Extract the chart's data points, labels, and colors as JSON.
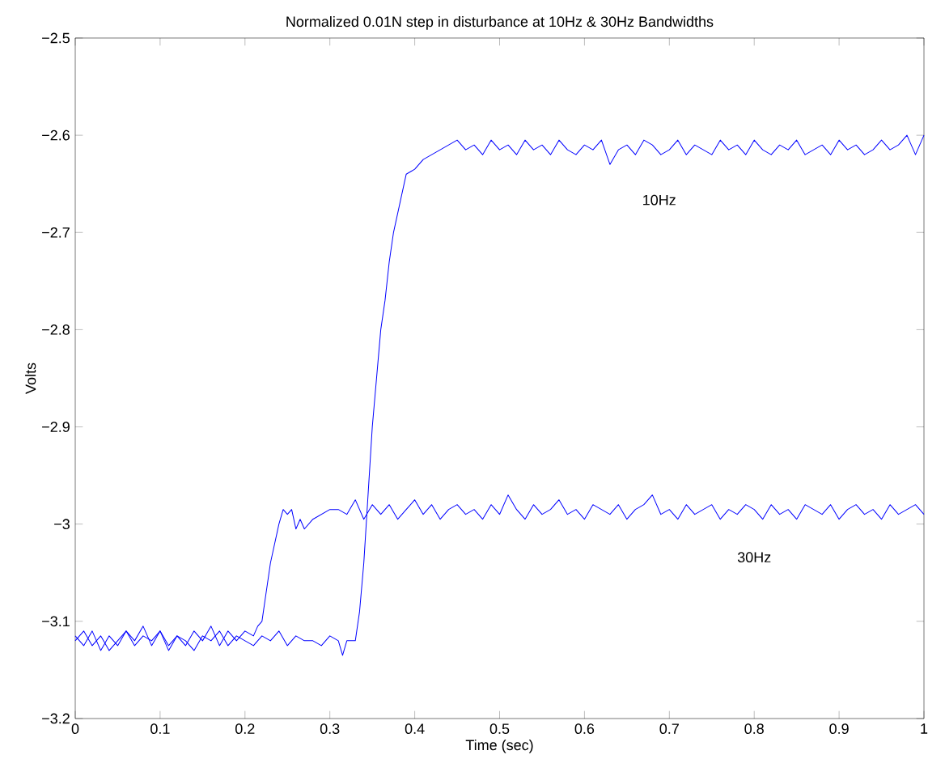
{
  "chart_data": {
    "type": "line",
    "title": "Normalized 0.01N step in disturbance at 10Hz & 30Hz Bandwidths",
    "xlabel": "Time (sec)",
    "ylabel": "Volts",
    "xlim": [
      0,
      1
    ],
    "ylim": [
      -3.2,
      -2.5
    ],
    "xticks": [
      0,
      0.1,
      0.2,
      0.3,
      0.4,
      0.5,
      0.6,
      0.7,
      0.8,
      0.9,
      1
    ],
    "yticks": [
      {
        "value": -3.2,
        "label": "−3.2"
      },
      {
        "value": -3.1,
        "label": "−3.1"
      },
      {
        "value": -3,
        "label": "−3"
      },
      {
        "value": -2.9,
        "label": "−2.9"
      },
      {
        "value": -2.8,
        "label": "−2.8"
      },
      {
        "value": -2.7,
        "label": "−2.7"
      },
      {
        "value": -2.6,
        "label": "−2.6"
      },
      {
        "value": -2.5,
        "label": "−2.5"
      }
    ],
    "grid": false,
    "marker": "none",
    "line_style": "solid",
    "annotations": [
      "10Hz",
      "30Hz"
    ],
    "series": [
      {
        "color": "#0000ff",
        "x": [
          0,
          0.01,
          0.02,
          0.03,
          0.04,
          0.05,
          0.06,
          0.07,
          0.08,
          0.09,
          0.1,
          0.11,
          0.12,
          0.13,
          0.14,
          0.15,
          0.16,
          0.17,
          0.18,
          0.19,
          0.2,
          0.21,
          0.22,
          0.23,
          0.24,
          0.25,
          0.26,
          0.27,
          0.28,
          0.29,
          0.3,
          0.31,
          0.315,
          0.32,
          0.33,
          0.335,
          0.34,
          0.345,
          0.35,
          0.355,
          0.36,
          0.365,
          0.37,
          0.375,
          0.38,
          0.385,
          0.39,
          0.4,
          0.41,
          0.42,
          0.43,
          0.44,
          0.45,
          0.46,
          0.47,
          0.48,
          0.49,
          0.5,
          0.51,
          0.52,
          0.53,
          0.54,
          0.55,
          0.56,
          0.57,
          0.58,
          0.59,
          0.6,
          0.61,
          0.62,
          0.63,
          0.64,
          0.65,
          0.66,
          0.67,
          0.68,
          0.69,
          0.7,
          0.71,
          0.72,
          0.73,
          0.74,
          0.75,
          0.76,
          0.77,
          0.78,
          0.79,
          0.8,
          0.81,
          0.82,
          0.83,
          0.84,
          0.85,
          0.86,
          0.87,
          0.88,
          0.89,
          0.9,
          0.91,
          0.92,
          0.93,
          0.94,
          0.95,
          0.96,
          0.97,
          0.98,
          0.99,
          1
        ],
        "values": [
          -3.12,
          -3.11,
          -3.125,
          -3.115,
          -3.13,
          -3.12,
          -3.11,
          -3.125,
          -3.115,
          -3.12,
          -3.11,
          -3.125,
          -3.115,
          -3.12,
          -3.13,
          -3.115,
          -3.12,
          -3.11,
          -3.125,
          -3.115,
          -3.12,
          -3.125,
          -3.115,
          -3.12,
          -3.11,
          -3.125,
          -3.115,
          -3.12,
          -3.12,
          -3.125,
          -3.115,
          -3.12,
          -3.135,
          -3.12,
          -3.12,
          -3.09,
          -3.04,
          -2.97,
          -2.9,
          -2.85,
          -2.8,
          -2.77,
          -2.73,
          -2.7,
          -2.68,
          -2.66,
          -2.64,
          -2.635,
          -2.625,
          -2.62,
          -2.615,
          -2.61,
          -2.605,
          -2.615,
          -2.61,
          -2.62,
          -2.605,
          -2.615,
          -2.61,
          -2.62,
          -2.605,
          -2.615,
          -2.61,
          -2.62,
          -2.605,
          -2.615,
          -2.62,
          -2.61,
          -2.615,
          -2.605,
          -2.63,
          -2.615,
          -2.61,
          -2.62,
          -2.605,
          -2.61,
          -2.62,
          -2.615,
          -2.605,
          -2.62,
          -2.61,
          -2.615,
          -2.62,
          -2.605,
          -2.615,
          -2.61,
          -2.62,
          -2.605,
          -2.615,
          -2.62,
          -2.61,
          -2.615,
          -2.605,
          -2.62,
          -2.615,
          -2.61,
          -2.62,
          -2.605,
          -2.615,
          -2.61,
          -2.62,
          -2.615,
          -2.605,
          -2.615,
          -2.61,
          -2.6,
          -2.62,
          -2.6
        ]
      },
      {
        "color": "#0000ff",
        "x": [
          0,
          0.01,
          0.02,
          0.03,
          0.04,
          0.05,
          0.06,
          0.07,
          0.08,
          0.09,
          0.1,
          0.11,
          0.12,
          0.13,
          0.14,
          0.15,
          0.16,
          0.17,
          0.18,
          0.19,
          0.2,
          0.21,
          0.215,
          0.22,
          0.225,
          0.23,
          0.235,
          0.24,
          0.245,
          0.25,
          0.255,
          0.26,
          0.265,
          0.27,
          0.28,
          0.29,
          0.3,
          0.31,
          0.32,
          0.33,
          0.34,
          0.35,
          0.36,
          0.37,
          0.38,
          0.39,
          0.4,
          0.41,
          0.42,
          0.43,
          0.44,
          0.45,
          0.46,
          0.47,
          0.48,
          0.49,
          0.5,
          0.51,
          0.52,
          0.53,
          0.54,
          0.55,
          0.56,
          0.57,
          0.58,
          0.59,
          0.6,
          0.61,
          0.62,
          0.63,
          0.64,
          0.65,
          0.66,
          0.67,
          0.68,
          0.69,
          0.7,
          0.71,
          0.72,
          0.73,
          0.74,
          0.75,
          0.76,
          0.77,
          0.78,
          0.79,
          0.8,
          0.81,
          0.82,
          0.83,
          0.84,
          0.85,
          0.86,
          0.87,
          0.88,
          0.89,
          0.9,
          0.91,
          0.92,
          0.93,
          0.94,
          0.95,
          0.96,
          0.97,
          0.98,
          0.99,
          1
        ],
        "values": [
          -3.115,
          -3.125,
          -3.11,
          -3.13,
          -3.115,
          -3.125,
          -3.11,
          -3.12,
          -3.105,
          -3.125,
          -3.11,
          -3.13,
          -3.115,
          -3.125,
          -3.11,
          -3.12,
          -3.105,
          -3.125,
          -3.11,
          -3.12,
          -3.11,
          -3.115,
          -3.105,
          -3.1,
          -3.07,
          -3.04,
          -3.02,
          -3.0,
          -2.985,
          -2.99,
          -2.985,
          -3.005,
          -2.995,
          -3.005,
          -2.995,
          -2.99,
          -2.985,
          -2.985,
          -2.99,
          -2.975,
          -2.995,
          -2.98,
          -2.99,
          -2.98,
          -2.995,
          -2.985,
          -2.975,
          -2.99,
          -2.98,
          -2.995,
          -2.985,
          -2.98,
          -2.99,
          -2.985,
          -2.995,
          -2.98,
          -2.99,
          -2.97,
          -2.985,
          -2.995,
          -2.98,
          -2.99,
          -2.985,
          -2.975,
          -2.99,
          -2.985,
          -2.995,
          -2.98,
          -2.985,
          -2.99,
          -2.98,
          -2.995,
          -2.985,
          -2.98,
          -2.97,
          -2.99,
          -2.985,
          -2.995,
          -2.98,
          -2.99,
          -2.985,
          -2.98,
          -2.995,
          -2.985,
          -2.99,
          -2.98,
          -2.985,
          -2.995,
          -2.98,
          -2.99,
          -2.985,
          -2.995,
          -2.98,
          -2.985,
          -2.99,
          -2.98,
          -2.995,
          -2.985,
          -2.98,
          -2.99,
          -2.985,
          -2.995,
          -2.98,
          -2.99,
          -2.985,
          -2.98,
          -2.99
        ]
      }
    ]
  }
}
